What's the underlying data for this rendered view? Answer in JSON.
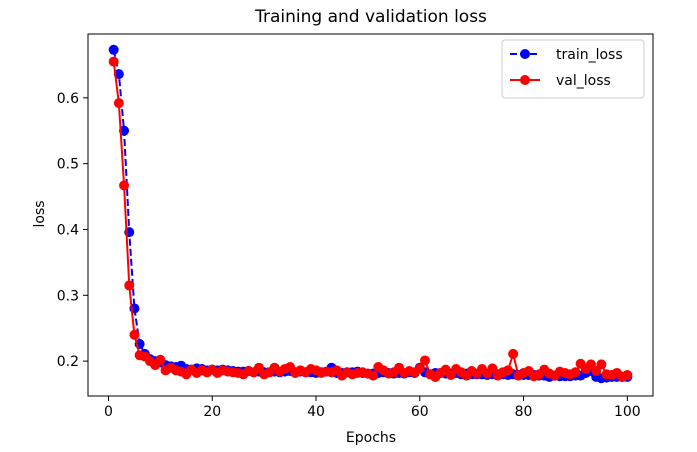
{
  "chart_data": {
    "type": "line",
    "title": "Training and validation loss",
    "xlabel": "Epochs",
    "ylabel": "loss",
    "xlim": [
      -3.95,
      104.95
    ],
    "ylim": [
      0.147,
      0.697
    ],
    "xticks": [
      0,
      20,
      40,
      60,
      80,
      100
    ],
    "yticks": [
      0.2,
      0.3,
      0.4,
      0.5,
      0.6
    ],
    "grid": false,
    "legend_position": "top-right",
    "series": [
      {
        "name": "train_loss",
        "color": "#0000ff",
        "line_style": "dashed",
        "marker": "circle",
        "x": [
          1,
          2,
          3,
          4,
          5,
          6,
          7,
          8,
          9,
          10,
          11,
          12,
          13,
          14,
          15,
          16,
          17,
          18,
          19,
          20,
          21,
          22,
          23,
          24,
          25,
          26,
          27,
          28,
          29,
          30,
          31,
          32,
          33,
          34,
          35,
          36,
          37,
          38,
          39,
          40,
          41,
          42,
          43,
          44,
          45,
          46,
          47,
          48,
          49,
          50,
          51,
          52,
          53,
          54,
          55,
          56,
          57,
          58,
          59,
          60,
          61,
          62,
          63,
          64,
          65,
          66,
          67,
          68,
          69,
          70,
          71,
          72,
          73,
          74,
          75,
          76,
          77,
          78,
          79,
          80,
          81,
          82,
          83,
          84,
          85,
          86,
          87,
          88,
          89,
          90,
          91,
          92,
          93,
          94,
          95,
          96,
          97,
          98,
          99,
          100
        ],
        "values": [
          0.673,
          0.636,
          0.55,
          0.396,
          0.28,
          0.226,
          0.211,
          0.203,
          0.2,
          0.198,
          0.194,
          0.192,
          0.191,
          0.193,
          0.188,
          0.187,
          0.189,
          0.188,
          0.186,
          0.187,
          0.186,
          0.187,
          0.186,
          0.185,
          0.184,
          0.184,
          0.185,
          0.183,
          0.184,
          0.183,
          0.183,
          0.184,
          0.183,
          0.184,
          0.185,
          0.183,
          0.184,
          0.183,
          0.183,
          0.182,
          0.183,
          0.184,
          0.19,
          0.182,
          0.182,
          0.183,
          0.183,
          0.184,
          0.182,
          0.181,
          0.181,
          0.182,
          0.183,
          0.182,
          0.181,
          0.182,
          0.181,
          0.183,
          0.182,
          0.19,
          0.183,
          0.18,
          0.182,
          0.182,
          0.181,
          0.181,
          0.182,
          0.18,
          0.181,
          0.18,
          0.18,
          0.18,
          0.179,
          0.18,
          0.18,
          0.18,
          0.179,
          0.18,
          0.179,
          0.179,
          0.179,
          0.179,
          0.178,
          0.178,
          0.176,
          0.178,
          0.177,
          0.177,
          0.177,
          0.178,
          0.178,
          0.182,
          0.185,
          0.176,
          0.174,
          0.175,
          0.176,
          0.176,
          0.176,
          0.176
        ]
      },
      {
        "name": "val_loss",
        "color": "#ff0000",
        "line_style": "solid",
        "marker": "circle",
        "x": [
          1,
          2,
          3,
          4,
          5,
          6,
          7,
          8,
          9,
          10,
          11,
          12,
          13,
          14,
          15,
          16,
          17,
          18,
          19,
          20,
          21,
          22,
          23,
          24,
          25,
          26,
          27,
          28,
          29,
          30,
          31,
          32,
          33,
          34,
          35,
          36,
          37,
          38,
          39,
          40,
          41,
          42,
          43,
          44,
          45,
          46,
          47,
          48,
          49,
          50,
          51,
          52,
          53,
          54,
          55,
          56,
          57,
          58,
          59,
          60,
          61,
          62,
          63,
          64,
          65,
          66,
          67,
          68,
          69,
          70,
          71,
          72,
          73,
          74,
          75,
          76,
          77,
          78,
          79,
          80,
          81,
          82,
          83,
          84,
          85,
          86,
          87,
          88,
          89,
          90,
          91,
          92,
          93,
          94,
          95,
          96,
          97,
          98,
          99,
          100
        ],
        "values": [
          0.655,
          0.592,
          0.467,
          0.315,
          0.24,
          0.209,
          0.207,
          0.2,
          0.194,
          0.202,
          0.186,
          0.19,
          0.186,
          0.184,
          0.18,
          0.187,
          0.182,
          0.186,
          0.183,
          0.187,
          0.182,
          0.186,
          0.184,
          0.183,
          0.182,
          0.18,
          0.185,
          0.183,
          0.19,
          0.18,
          0.183,
          0.19,
          0.184,
          0.188,
          0.191,
          0.182,
          0.186,
          0.183,
          0.188,
          0.186,
          0.182,
          0.184,
          0.183,
          0.186,
          0.178,
          0.183,
          0.18,
          0.182,
          0.183,
          0.181,
          0.178,
          0.191,
          0.186,
          0.181,
          0.183,
          0.19,
          0.182,
          0.185,
          0.183,
          0.189,
          0.201,
          0.18,
          0.176,
          0.182,
          0.187,
          0.179,
          0.188,
          0.183,
          0.178,
          0.185,
          0.181,
          0.188,
          0.181,
          0.189,
          0.178,
          0.183,
          0.186,
          0.211,
          0.178,
          0.182,
          0.185,
          0.177,
          0.18,
          0.187,
          0.181,
          0.178,
          0.184,
          0.182,
          0.18,
          0.183,
          0.196,
          0.188,
          0.195,
          0.185,
          0.195,
          0.18,
          0.179,
          0.182,
          0.176,
          0.179
        ]
      }
    ]
  }
}
